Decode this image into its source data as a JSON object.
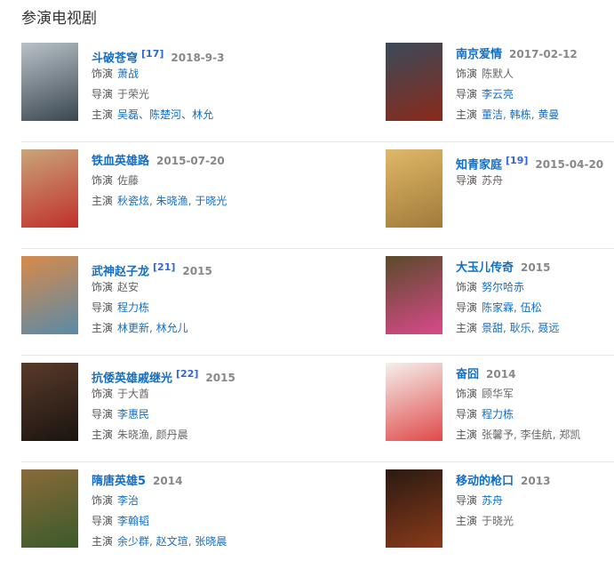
{
  "section_title": "参演电视剧",
  "columns": [
    [
      {
        "title": "斗破苍穹",
        "ref": "[17]",
        "date": "2018-9-3",
        "poster_colors": [
          "#b9c2c8",
          "#3a4650"
        ],
        "lines": [
          {
            "label": "饰演",
            "sep": "、",
            "people": [
              {
                "name": "萧战",
                "link": true
              }
            ]
          },
          {
            "label": "导演",
            "sep": "、",
            "people": [
              {
                "name": "于荣光",
                "link": false
              }
            ]
          },
          {
            "label": "主演",
            "sep": "、",
            "people": [
              {
                "name": "吴磊",
                "link": true
              },
              {
                "name": "陈楚河",
                "link": true
              },
              {
                "name": "林允",
                "link": true
              }
            ]
          }
        ]
      },
      {
        "title": "铁血英雄路",
        "ref": "",
        "date": "2015-07-20",
        "poster_colors": [
          "#c9a57a",
          "#c0302a"
        ],
        "lines": [
          {
            "label": "饰演",
            "sep": ", ",
            "people": [
              {
                "name": "佐藤",
                "link": false
              }
            ]
          },
          {
            "label": "主演",
            "sep": ", ",
            "people": [
              {
                "name": "秋瓷炫",
                "link": true
              },
              {
                "name": "朱晓渔",
                "link": true
              },
              {
                "name": "于晓光",
                "link": true
              }
            ]
          }
        ]
      },
      {
        "title": "武神赵子龙",
        "ref": "[21]",
        "date": "2015",
        "poster_colors": [
          "#d88a4a",
          "#5a8aa8"
        ],
        "lines": [
          {
            "label": "饰演",
            "sep": ", ",
            "people": [
              {
                "name": "赵安",
                "link": false
              }
            ]
          },
          {
            "label": "导演",
            "sep": ", ",
            "people": [
              {
                "name": "程力栋",
                "link": true
              }
            ]
          },
          {
            "label": "主演",
            "sep": ", ",
            "people": [
              {
                "name": "林更新",
                "link": true
              },
              {
                "name": "林允儿",
                "link": true
              }
            ]
          }
        ]
      },
      {
        "title": "抗倭英雄戚继光",
        "ref": "[22]",
        "date": "2015",
        "poster_colors": [
          "#5a3a2a",
          "#1a1410"
        ],
        "lines": [
          {
            "label": "饰演",
            "sep": ", ",
            "people": [
              {
                "name": "于大酋",
                "link": false
              }
            ]
          },
          {
            "label": "导演",
            "sep": ", ",
            "people": [
              {
                "name": "李惠民",
                "link": true
              }
            ]
          },
          {
            "label": "主演",
            "sep": ", ",
            "people": [
              {
                "name": "朱晓渔",
                "link": false
              },
              {
                "name": "颜丹晨",
                "link": false
              }
            ]
          }
        ]
      },
      {
        "title": "隋唐英雄5",
        "ref": "",
        "date": "2014",
        "poster_colors": [
          "#8a6a3a",
          "#3a5a2a"
        ],
        "lines": [
          {
            "label": "饰演",
            "sep": ", ",
            "people": [
              {
                "name": "李治",
                "link": true
              }
            ]
          },
          {
            "label": "导演",
            "sep": ", ",
            "people": [
              {
                "name": "李翰韬",
                "link": true
              }
            ]
          },
          {
            "label": "主演",
            "sep": ", ",
            "people": [
              {
                "name": "余少群",
                "link": true
              },
              {
                "name": "赵文瑄",
                "link": true
              },
              {
                "name": "张晓晨",
                "link": true
              }
            ]
          }
        ]
      }
    ],
    [
      {
        "title": "南京爱情",
        "ref": "",
        "date": "2017-02-12",
        "poster_colors": [
          "#3a4a5a",
          "#8a2a1a"
        ],
        "lines": [
          {
            "label": "饰演",
            "sep": ", ",
            "people": [
              {
                "name": "陈默人",
                "link": false
              }
            ]
          },
          {
            "label": "导演",
            "sep": ", ",
            "people": [
              {
                "name": "李云亮",
                "link": true
              }
            ]
          },
          {
            "label": "主演",
            "sep": ", ",
            "people": [
              {
                "name": "董洁",
                "link": true
              },
              {
                "name": "韩栋",
                "link": true
              },
              {
                "name": "黄曼",
                "link": true
              }
            ]
          }
        ]
      },
      {
        "title": "知青家庭",
        "ref": "[19]",
        "date": "2015-04-20",
        "poster_colors": [
          "#e0b868",
          "#a07a3a"
        ],
        "lines": [
          {
            "label": "导演",
            "sep": ", ",
            "people": [
              {
                "name": "苏舟",
                "link": false
              }
            ]
          }
        ]
      },
      {
        "title": "大玉儿传奇",
        "ref": "",
        "date": "2015",
        "poster_colors": [
          "#5a4a2a",
          "#d84a8a"
        ],
        "lines": [
          {
            "label": "饰演",
            "sep": ", ",
            "people": [
              {
                "name": "努尔哈赤",
                "link": true
              }
            ]
          },
          {
            "label": "导演",
            "sep": ", ",
            "people": [
              {
                "name": "陈家霖",
                "link": true
              },
              {
                "name": "伍松",
                "link": true
              }
            ]
          },
          {
            "label": "主演",
            "sep": ", ",
            "people": [
              {
                "name": "景甜",
                "link": true
              },
              {
                "name": "耿乐",
                "link": true
              },
              {
                "name": "聂远",
                "link": true
              }
            ]
          }
        ]
      },
      {
        "title": "奋囧",
        "ref": "",
        "date": "2014",
        "poster_colors": [
          "#f4f0ec",
          "#e04a4a"
        ],
        "lines": [
          {
            "label": "饰演",
            "sep": ", ",
            "people": [
              {
                "name": "顾华军",
                "link": false
              }
            ]
          },
          {
            "label": "导演",
            "sep": ", ",
            "people": [
              {
                "name": "程力栋",
                "link": true
              }
            ]
          },
          {
            "label": "主演",
            "sep": ", ",
            "people": [
              {
                "name": "张馨予",
                "link": false
              },
              {
                "name": "李佳航",
                "link": false
              },
              {
                "name": "郑凯",
                "link": false
              }
            ]
          }
        ]
      },
      {
        "title": "移动的枪口",
        "ref": "",
        "date": "2013",
        "poster_colors": [
          "#2a1a12",
          "#8a3a1a"
        ],
        "lines": [
          {
            "label": "导演",
            "sep": ", ",
            "people": [
              {
                "name": "苏舟",
                "link": true
              }
            ]
          },
          {
            "label": "主演",
            "sep": ", ",
            "people": [
              {
                "name": "于晓光",
                "link": false
              }
            ]
          }
        ]
      }
    ]
  ]
}
